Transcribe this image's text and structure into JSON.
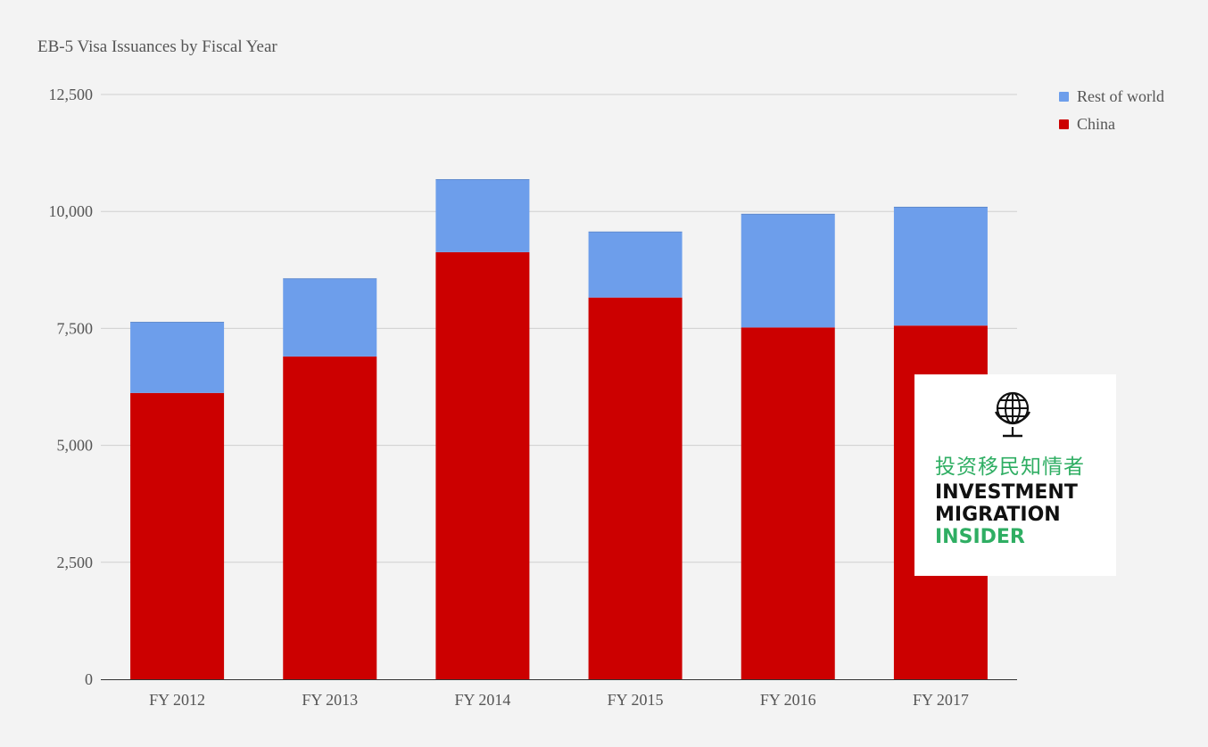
{
  "chart_data": {
    "type": "bar",
    "stacked": true,
    "title": "EB-5 Visa Issuances by Fiscal Year",
    "categories": [
      "FY 2012",
      "FY 2013",
      "FY 2014",
      "FY 2015",
      "FY 2016",
      "FY 2017"
    ],
    "series": [
      {
        "name": "China",
        "color": "#cc0000",
        "values": [
          6120,
          6900,
          9130,
          8160,
          7520,
          7560
        ]
      },
      {
        "name": "Rest of world",
        "color": "#6d9eeb",
        "values": [
          1520,
          1670,
          1560,
          1410,
          2430,
          2540
        ]
      }
    ],
    "ylim": [
      0,
      12500
    ],
    "yticks": [
      "0",
      "2,500",
      "5,000",
      "7,500",
      "10,000",
      "12,500"
    ],
    "ytick_values": [
      0,
      2500,
      5000,
      7500,
      10000,
      12500
    ],
    "grid": true,
    "legend_position": "top-right",
    "xlabel": "",
    "ylabel": ""
  },
  "legend": {
    "items": [
      {
        "label": "Rest of world",
        "color": "#6d9eeb"
      },
      {
        "label": "China",
        "color": "#cc0000"
      }
    ]
  },
  "logo": {
    "icon": "globe-icon",
    "chinese_name": "投资移民知情者",
    "line1": "INVESTMENT",
    "line2": "MIGRATION",
    "line3": "INSIDER"
  }
}
